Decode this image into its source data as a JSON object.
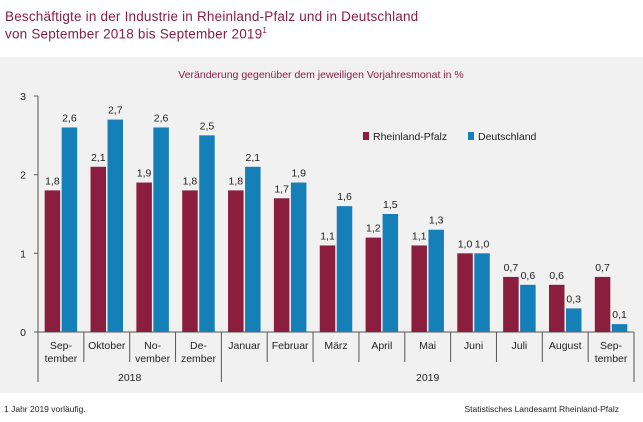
{
  "header": {
    "title_line1": "Beschäftigte in der Industrie in Rheinland-Pfalz und in Deutschland",
    "title_line2": "von September 2018 bis September 2019",
    "title_sup": "1"
  },
  "footer": {
    "note": "1 Jahr 2019 vorläufig.",
    "source": "Statistisches Landesamt Rheinland-Pfalz"
  },
  "colors": {
    "rheinland_pfalz": "#8b1e3f",
    "deutschland": "#1580b8",
    "title": "#8b1e3f",
    "panel_background": "#f1f1f1"
  },
  "chart_data": {
    "type": "bar",
    "subtitle": "Veränderung gegenüber dem jeweiligen Vorjahresmonat in %",
    "categories": [
      [
        "Sep-",
        "tember"
      ],
      [
        "Oktober"
      ],
      [
        "No-",
        "vember"
      ],
      [
        "De-",
        "zember"
      ],
      [
        "Januar"
      ],
      [
        "Februar"
      ],
      [
        "März"
      ],
      [
        "April"
      ],
      [
        "Mai"
      ],
      [
        "Juni"
      ],
      [
        "Juli"
      ],
      [
        "August"
      ],
      [
        "Sep-",
        "tember"
      ]
    ],
    "groups": [
      {
        "label": "2018",
        "from": 0,
        "to": 3
      },
      {
        "label": "2019",
        "from": 4,
        "to": 12
      }
    ],
    "series": [
      {
        "name": "Rheinland-Pfalz",
        "values": [
          1.8,
          2.1,
          1.9,
          1.8,
          1.8,
          1.7,
          1.1,
          1.2,
          1.1,
          1.0,
          0.7,
          0.6,
          0.7
        ],
        "labels": [
          "1,8",
          "2,1",
          "1,9",
          "1,8",
          "1,8",
          "1,7",
          "1,1",
          "1,2",
          "1,1",
          "1,0",
          "0,7",
          "0,6",
          "0,7"
        ]
      },
      {
        "name": "Deutschland",
        "values": [
          2.6,
          2.7,
          2.6,
          2.5,
          2.1,
          1.9,
          1.6,
          1.5,
          1.3,
          1.0,
          0.6,
          0.3,
          0.1
        ],
        "labels": [
          "2,6",
          "2,7",
          "2,6",
          "2,5",
          "2,1",
          "1,9",
          "1,6",
          "1,5",
          "1,3",
          "1,0",
          "0,6",
          "0,3",
          "0,1"
        ]
      }
    ],
    "y_ticks": [
      "0",
      "1",
      "2",
      "3"
    ],
    "ylim": [
      0,
      3
    ],
    "grid": false,
    "legend_position": "right, upper-middle"
  }
}
